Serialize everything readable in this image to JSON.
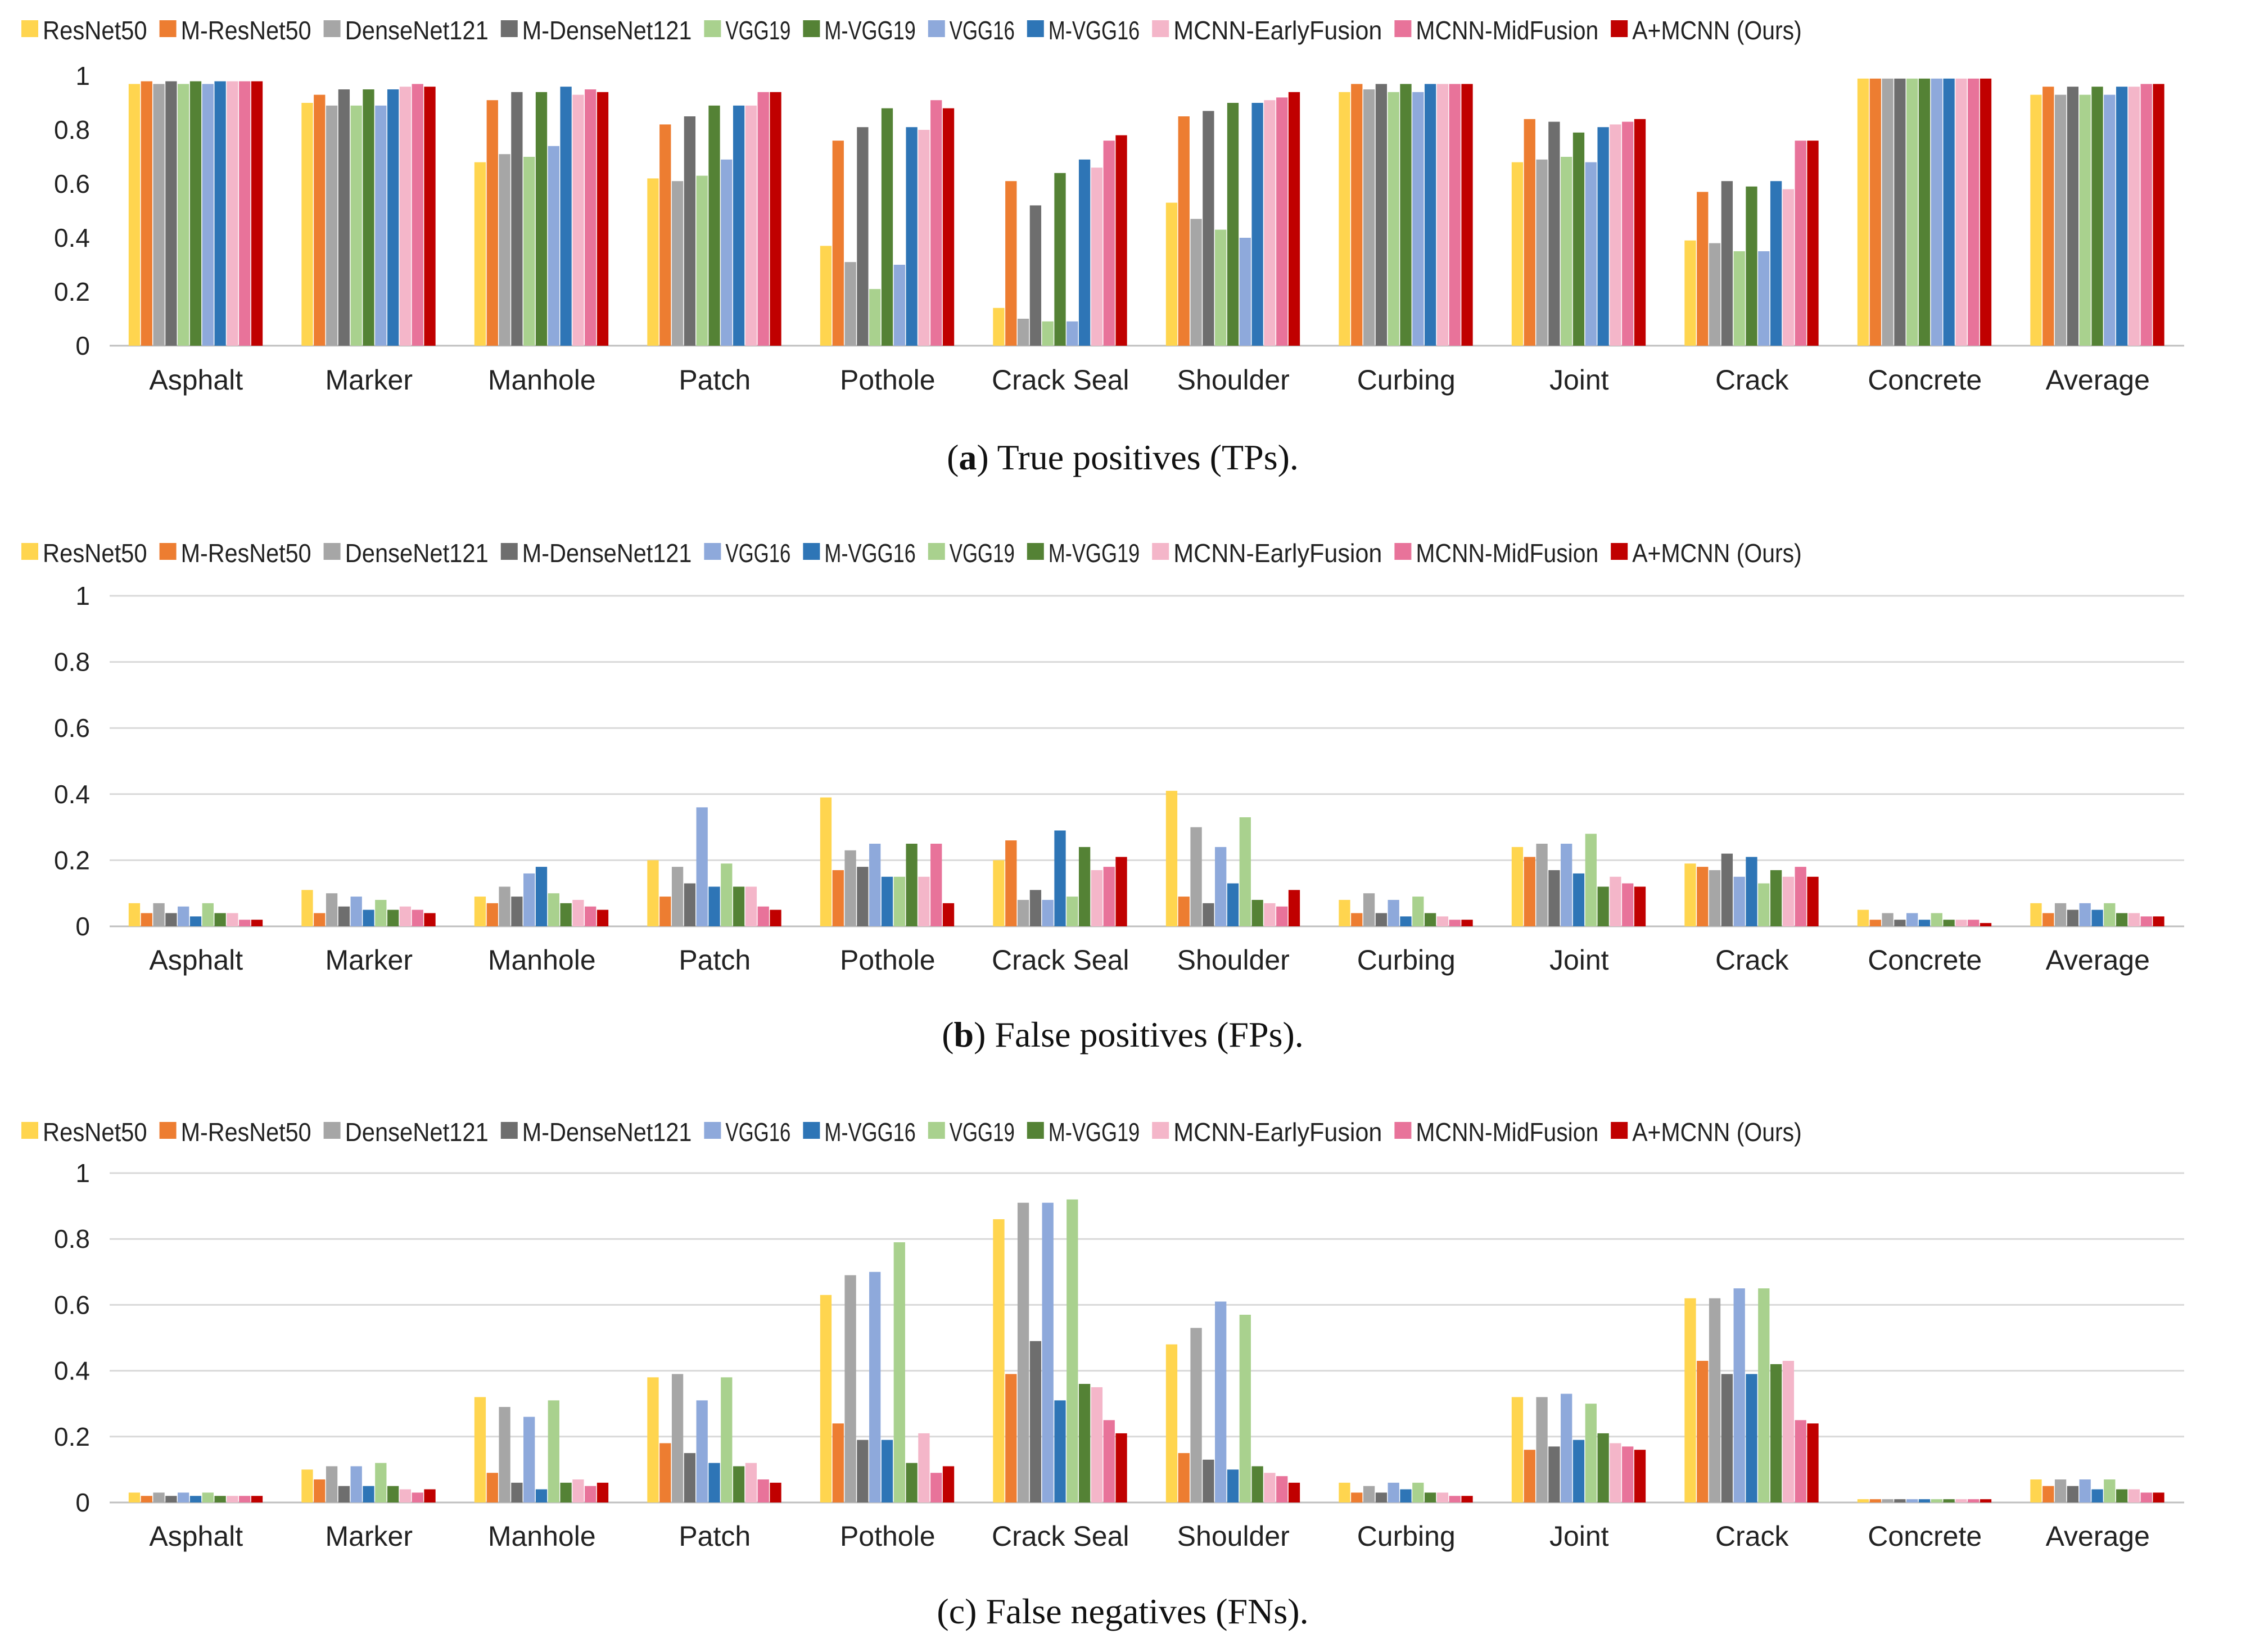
{
  "colors": {
    "ResNet50": "#FFD54F",
    "M-ResNet50": "#ED7D31",
    "DenseNet121": "#A6A6A6",
    "M-DenseNet121": "#6E6E6E",
    "VGG19": "#A9D18E",
    "M-VGG19": "#548235",
    "VGG16": "#8EA9DB",
    "M-VGG16": "#2E75B6",
    "MCNN-EarlyFusion": "#F4B6C9",
    "MCNN-MidFusion": "#E8739A",
    "A+MCNN (Ours)": "#C00000"
  },
  "chart_data": [
    {
      "type": "bar",
      "caption_letter": "a",
      "caption_text": " True positives (TPs).",
      "categories": [
        "Asphalt",
        "Marker",
        "Manhole",
        "Patch",
        "Pothole",
        "Crack Seal",
        "Shoulder",
        "Curbing",
        "Joint",
        "Crack",
        "Concrete",
        "Average"
      ],
      "ylim": [
        0,
        1
      ],
      "yticks": [
        "0",
        "0.2",
        "0.4",
        "0.6",
        "0.8",
        "1"
      ],
      "grid": false,
      "legend_position": "top",
      "series": [
        {
          "name": "ResNet50",
          "values": [
            0.97,
            0.9,
            0.68,
            0.62,
            0.37,
            0.14,
            0.53,
            0.94,
            0.68,
            0.39,
            0.99,
            0.93
          ]
        },
        {
          "name": "M-ResNet50",
          "values": [
            0.98,
            0.93,
            0.91,
            0.82,
            0.76,
            0.61,
            0.85,
            0.97,
            0.84,
            0.57,
            0.99,
            0.96
          ]
        },
        {
          "name": "DenseNet121",
          "values": [
            0.97,
            0.89,
            0.71,
            0.61,
            0.31,
            0.1,
            0.47,
            0.95,
            0.69,
            0.38,
            0.99,
            0.93
          ]
        },
        {
          "name": "M-DenseNet121",
          "values": [
            0.98,
            0.95,
            0.94,
            0.85,
            0.81,
            0.52,
            0.87,
            0.97,
            0.83,
            0.61,
            0.99,
            0.96
          ]
        },
        {
          "name": "VGG19",
          "values": [
            0.97,
            0.89,
            0.7,
            0.63,
            0.21,
            0.09,
            0.43,
            0.94,
            0.7,
            0.35,
            0.99,
            0.93
          ]
        },
        {
          "name": "M-VGG19",
          "values": [
            0.98,
            0.95,
            0.94,
            0.89,
            0.88,
            0.64,
            0.9,
            0.97,
            0.79,
            0.59,
            0.99,
            0.96
          ]
        },
        {
          "name": "VGG16",
          "values": [
            0.97,
            0.89,
            0.74,
            0.69,
            0.3,
            0.09,
            0.4,
            0.94,
            0.68,
            0.35,
            0.99,
            0.93
          ]
        },
        {
          "name": "M-VGG16",
          "values": [
            0.98,
            0.95,
            0.96,
            0.89,
            0.81,
            0.69,
            0.9,
            0.97,
            0.81,
            0.61,
            0.99,
            0.96
          ]
        },
        {
          "name": "MCNN-EarlyFusion",
          "values": [
            0.98,
            0.96,
            0.93,
            0.89,
            0.8,
            0.66,
            0.91,
            0.97,
            0.82,
            0.58,
            0.99,
            0.96
          ]
        },
        {
          "name": "MCNN-MidFusion",
          "values": [
            0.98,
            0.97,
            0.95,
            0.94,
            0.91,
            0.76,
            0.92,
            0.97,
            0.83,
            0.76,
            0.99,
            0.97
          ]
        },
        {
          "name": "A+MCNN (Ours)",
          "values": [
            0.98,
            0.96,
            0.94,
            0.94,
            0.88,
            0.78,
            0.94,
            0.97,
            0.84,
            0.76,
            0.99,
            0.97
          ]
        }
      ]
    },
    {
      "type": "bar",
      "caption_letter": "b",
      "caption_text": " False positives (FPs).",
      "categories": [
        "Asphalt",
        "Marker",
        "Manhole",
        "Patch",
        "Pothole",
        "Crack Seal",
        "Shoulder",
        "Curbing",
        "Joint",
        "Crack",
        "Concrete",
        "Average"
      ],
      "ylim": [
        0,
        1
      ],
      "yticks": [
        "0",
        "0.2",
        "0.4",
        "0.6",
        "0.8",
        "1"
      ],
      "grid": true,
      "legend_position": "top",
      "series": [
        {
          "name": "ResNet50",
          "values": [
            0.07,
            0.11,
            0.09,
            0.2,
            0.39,
            0.2,
            0.41,
            0.08,
            0.24,
            0.19,
            0.05,
            0.07
          ]
        },
        {
          "name": "M-ResNet50",
          "values": [
            0.04,
            0.04,
            0.07,
            0.09,
            0.17,
            0.26,
            0.09,
            0.04,
            0.21,
            0.18,
            0.02,
            0.04
          ]
        },
        {
          "name": "DenseNet121",
          "values": [
            0.07,
            0.1,
            0.12,
            0.18,
            0.23,
            0.08,
            0.3,
            0.1,
            0.25,
            0.17,
            0.04,
            0.07
          ]
        },
        {
          "name": "M-DenseNet121",
          "values": [
            0.04,
            0.06,
            0.09,
            0.13,
            0.18,
            0.11,
            0.07,
            0.04,
            0.17,
            0.22,
            0.02,
            0.05
          ]
        },
        {
          "name": "VGG16",
          "values": [
            0.06,
            0.09,
            0.16,
            0.36,
            0.25,
            0.08,
            0.24,
            0.08,
            0.25,
            0.15,
            0.04,
            0.07
          ]
        },
        {
          "name": "M-VGG16",
          "values": [
            0.03,
            0.05,
            0.18,
            0.12,
            0.15,
            0.29,
            0.13,
            0.03,
            0.16,
            0.21,
            0.02,
            0.05
          ]
        },
        {
          "name": "VGG19",
          "values": [
            0.07,
            0.08,
            0.1,
            0.19,
            0.15,
            0.09,
            0.33,
            0.09,
            0.28,
            0.13,
            0.04,
            0.07
          ]
        },
        {
          "name": "M-VGG19",
          "values": [
            0.04,
            0.05,
            0.07,
            0.12,
            0.25,
            0.24,
            0.08,
            0.04,
            0.12,
            0.17,
            0.02,
            0.04
          ]
        },
        {
          "name": "MCNN-EarlyFusion",
          "values": [
            0.04,
            0.06,
            0.08,
            0.12,
            0.15,
            0.17,
            0.07,
            0.03,
            0.15,
            0.15,
            0.02,
            0.04
          ]
        },
        {
          "name": "MCNN-MidFusion",
          "values": [
            0.02,
            0.05,
            0.06,
            0.06,
            0.25,
            0.18,
            0.06,
            0.02,
            0.13,
            0.18,
            0.02,
            0.03
          ]
        },
        {
          "name": "A+MCNN (Ours)",
          "values": [
            0.02,
            0.04,
            0.05,
            0.05,
            0.07,
            0.21,
            0.11,
            0.02,
            0.12,
            0.15,
            0.01,
            0.03
          ]
        }
      ]
    },
    {
      "type": "bar",
      "caption_letter": "c",
      "caption_text": " False negatives (FNs).",
      "categories": [
        "Asphalt",
        "Marker",
        "Manhole",
        "Patch",
        "Pothole",
        "Crack Seal",
        "Shoulder",
        "Curbing",
        "Joint",
        "Crack",
        "Concrete",
        "Average"
      ],
      "ylim": [
        0,
        1
      ],
      "yticks": [
        "0",
        "0.2",
        "0.4",
        "0.6",
        "0.8",
        "1"
      ],
      "grid": true,
      "legend_position": "top",
      "series": [
        {
          "name": "ResNet50",
          "values": [
            0.03,
            0.1,
            0.32,
            0.38,
            0.63,
            0.86,
            0.48,
            0.06,
            0.32,
            0.62,
            0.01,
            0.07
          ]
        },
        {
          "name": "M-ResNet50",
          "values": [
            0.02,
            0.07,
            0.09,
            0.18,
            0.24,
            0.39,
            0.15,
            0.03,
            0.16,
            0.43,
            0.01,
            0.05
          ]
        },
        {
          "name": "DenseNet121",
          "values": [
            0.03,
            0.11,
            0.29,
            0.39,
            0.69,
            0.91,
            0.53,
            0.05,
            0.32,
            0.62,
            0.01,
            0.07
          ]
        },
        {
          "name": "M-DenseNet121",
          "values": [
            0.02,
            0.05,
            0.06,
            0.15,
            0.19,
            0.49,
            0.13,
            0.03,
            0.17,
            0.39,
            0.01,
            0.05
          ]
        },
        {
          "name": "VGG16",
          "values": [
            0.03,
            0.11,
            0.26,
            0.31,
            0.7,
            0.91,
            0.61,
            0.06,
            0.33,
            0.65,
            0.01,
            0.07
          ]
        },
        {
          "name": "M-VGG16",
          "values": [
            0.02,
            0.05,
            0.04,
            0.12,
            0.19,
            0.31,
            0.1,
            0.04,
            0.19,
            0.39,
            0.01,
            0.04
          ]
        },
        {
          "name": "VGG19",
          "values": [
            0.03,
            0.12,
            0.31,
            0.38,
            0.79,
            0.92,
            0.57,
            0.06,
            0.3,
            0.65,
            0.01,
            0.07
          ]
        },
        {
          "name": "M-VGG19",
          "values": [
            0.02,
            0.05,
            0.06,
            0.11,
            0.12,
            0.36,
            0.11,
            0.03,
            0.21,
            0.42,
            0.01,
            0.04
          ]
        },
        {
          "name": "MCNN-EarlyFusion",
          "values": [
            0.02,
            0.04,
            0.07,
            0.12,
            0.21,
            0.35,
            0.09,
            0.03,
            0.18,
            0.43,
            0.01,
            0.04
          ]
        },
        {
          "name": "MCNN-MidFusion",
          "values": [
            0.02,
            0.03,
            0.05,
            0.07,
            0.09,
            0.25,
            0.08,
            0.02,
            0.17,
            0.25,
            0.01,
            0.03
          ]
        },
        {
          "name": "A+MCNN (Ours)",
          "values": [
            0.02,
            0.04,
            0.06,
            0.06,
            0.11,
            0.21,
            0.06,
            0.02,
            0.16,
            0.24,
            0.01,
            0.03
          ]
        }
      ]
    }
  ]
}
